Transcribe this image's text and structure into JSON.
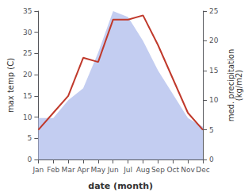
{
  "chart_data": {
    "type": "line",
    "xlabel": "date (month)",
    "ylabel": "max temp (C)",
    "y2label": "med. precipitation\n(kg/m2)",
    "categories": [
      "Jan",
      "Feb",
      "Mar",
      "Apr",
      "May",
      "Jun",
      "Jul",
      "Aug",
      "Sep",
      "Oct",
      "Nov",
      "Dec"
    ],
    "series": [
      {
        "type": "area",
        "axis": "y2",
        "color": "#b8c4ee",
        "values": [
          7,
          7,
          10,
          12,
          18,
          25,
          24,
          20,
          15,
          11,
          7,
          5.5
        ]
      },
      {
        "type": "line",
        "color": "#c0392b",
        "values": [
          7,
          11,
          15,
          24,
          23,
          33,
          33,
          34,
          27,
          19,
          11,
          7
        ]
      }
    ],
    "ylim": [
      0,
      35
    ],
    "yticks": [
      0,
      5,
      10,
      15,
      20,
      25,
      30,
      35
    ],
    "y2lim": [
      0,
      25
    ],
    "y2ticks": [
      0,
      5,
      10,
      15,
      20,
      25
    ],
    "grid": false
  }
}
